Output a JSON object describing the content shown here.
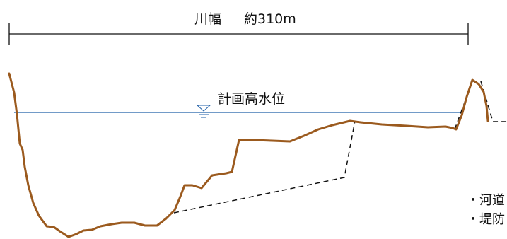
{
  "river_width": {
    "label": "川幅",
    "value": "約310m"
  },
  "water_level": {
    "label": "計画高水位",
    "symbol": "water-level-triangle-icon",
    "color": "#1f5fa8"
  },
  "legend": {
    "items": [
      {
        "label": "・河道"
      },
      {
        "label": "・堤防"
      }
    ]
  },
  "colors": {
    "ground_profile": "#9b5a1e",
    "dashed_profile": "#111111",
    "dimension_line": "#111111"
  }
}
